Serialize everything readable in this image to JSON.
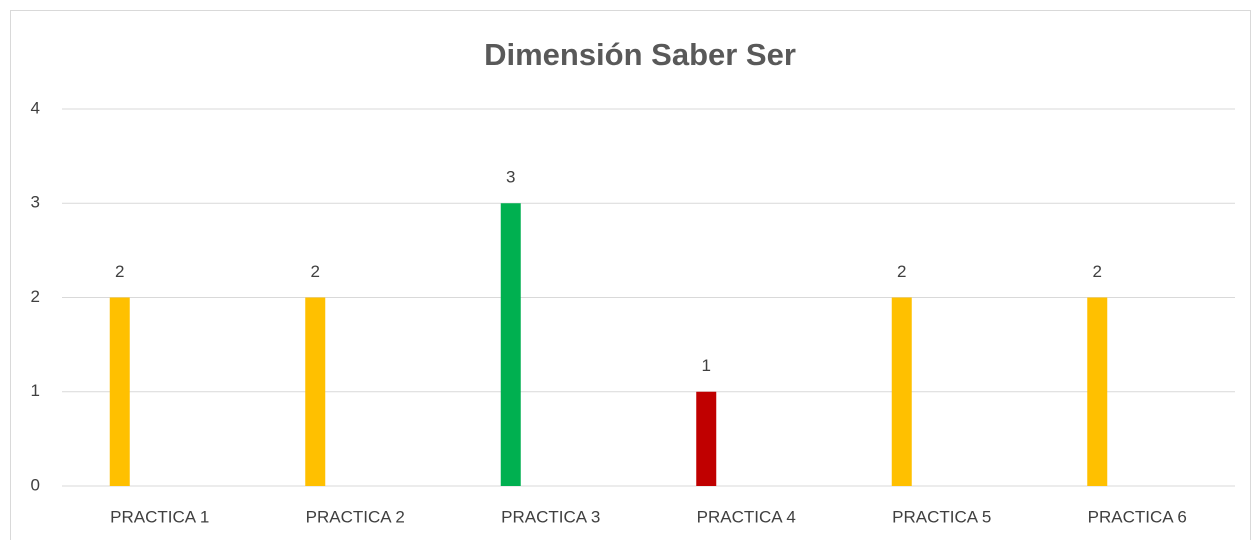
{
  "chart_data": {
    "type": "bar",
    "title": "Dimensión Saber Ser",
    "categories": [
      "PRACTICA 1",
      "PRACTICA 2",
      "PRACTICA 3",
      "PRACTICA 4",
      "PRACTICA 5",
      "PRACTICA 6"
    ],
    "values": [
      2,
      2,
      3,
      1,
      2,
      2
    ],
    "colors": [
      "#ffc000",
      "#ffc000",
      "#00b050",
      "#c00000",
      "#ffc000",
      "#ffc000"
    ],
    "ylim": [
      0,
      4
    ],
    "yticks": [
      0,
      1,
      2,
      3,
      4
    ],
    "grid": true
  }
}
